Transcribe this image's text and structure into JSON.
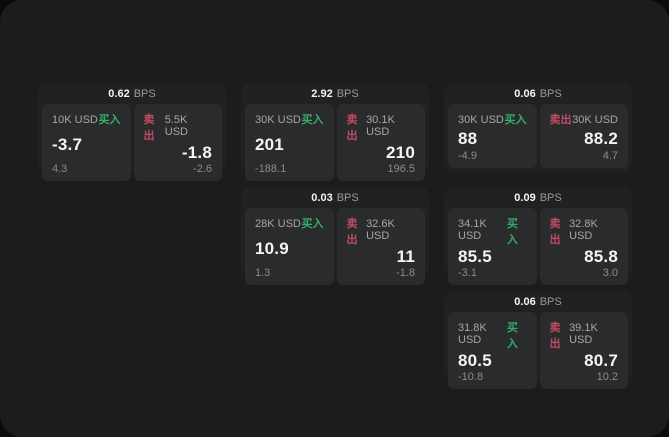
{
  "labels": {
    "bps_unit": "BPS",
    "buy_label": "买入",
    "sell_label": "卖出"
  },
  "colors": {
    "buy": "#36ad68",
    "sell": "#c04d63",
    "container_bg": "#1b1c1d",
    "card_bg": "#202123",
    "panel_bg": "#2a2b2d"
  },
  "cards": [
    {
      "col": 1,
      "row": 1,
      "bps": "0.62",
      "buy": {
        "size": "10K USD",
        "value": "-3.7",
        "delta": "4.3"
      },
      "sell": {
        "size": "5.5K USD",
        "value": "-1.8",
        "delta": "-2.6"
      }
    },
    {
      "col": 2,
      "row": 1,
      "bps": "2.92",
      "buy": {
        "size": "30K USD",
        "value": "201",
        "delta": "-188.1"
      },
      "sell": {
        "size": "30.1K USD",
        "value": "210",
        "delta": "196.5"
      }
    },
    {
      "col": 3,
      "row": 1,
      "bps": "0.06",
      "buy": {
        "size": "30K USD",
        "value": "88",
        "delta": "-4.9"
      },
      "sell": {
        "size": "30K USD",
        "value": "88.2",
        "delta": "4.7"
      }
    },
    {
      "col": 2,
      "row": 2,
      "bps": "0.03",
      "buy": {
        "size": "28K USD",
        "value": "10.9",
        "delta": "1.3"
      },
      "sell": {
        "size": "32.6K USD",
        "value": "11",
        "delta": "-1.8"
      }
    },
    {
      "col": 3,
      "row": 2,
      "bps": "0.09",
      "buy": {
        "size": "34.1K USD",
        "value": "85.5",
        "delta": "-3.1"
      },
      "sell": {
        "size": "32.8K USD",
        "value": "85.8",
        "delta": "3.0"
      }
    },
    {
      "col": 3,
      "row": 3,
      "bps": "0.06",
      "buy": {
        "size": "31.8K USD",
        "value": "80.5",
        "delta": "-10.8"
      },
      "sell": {
        "size": "39.1K USD",
        "value": "80.7",
        "delta": "10.2"
      }
    }
  ]
}
